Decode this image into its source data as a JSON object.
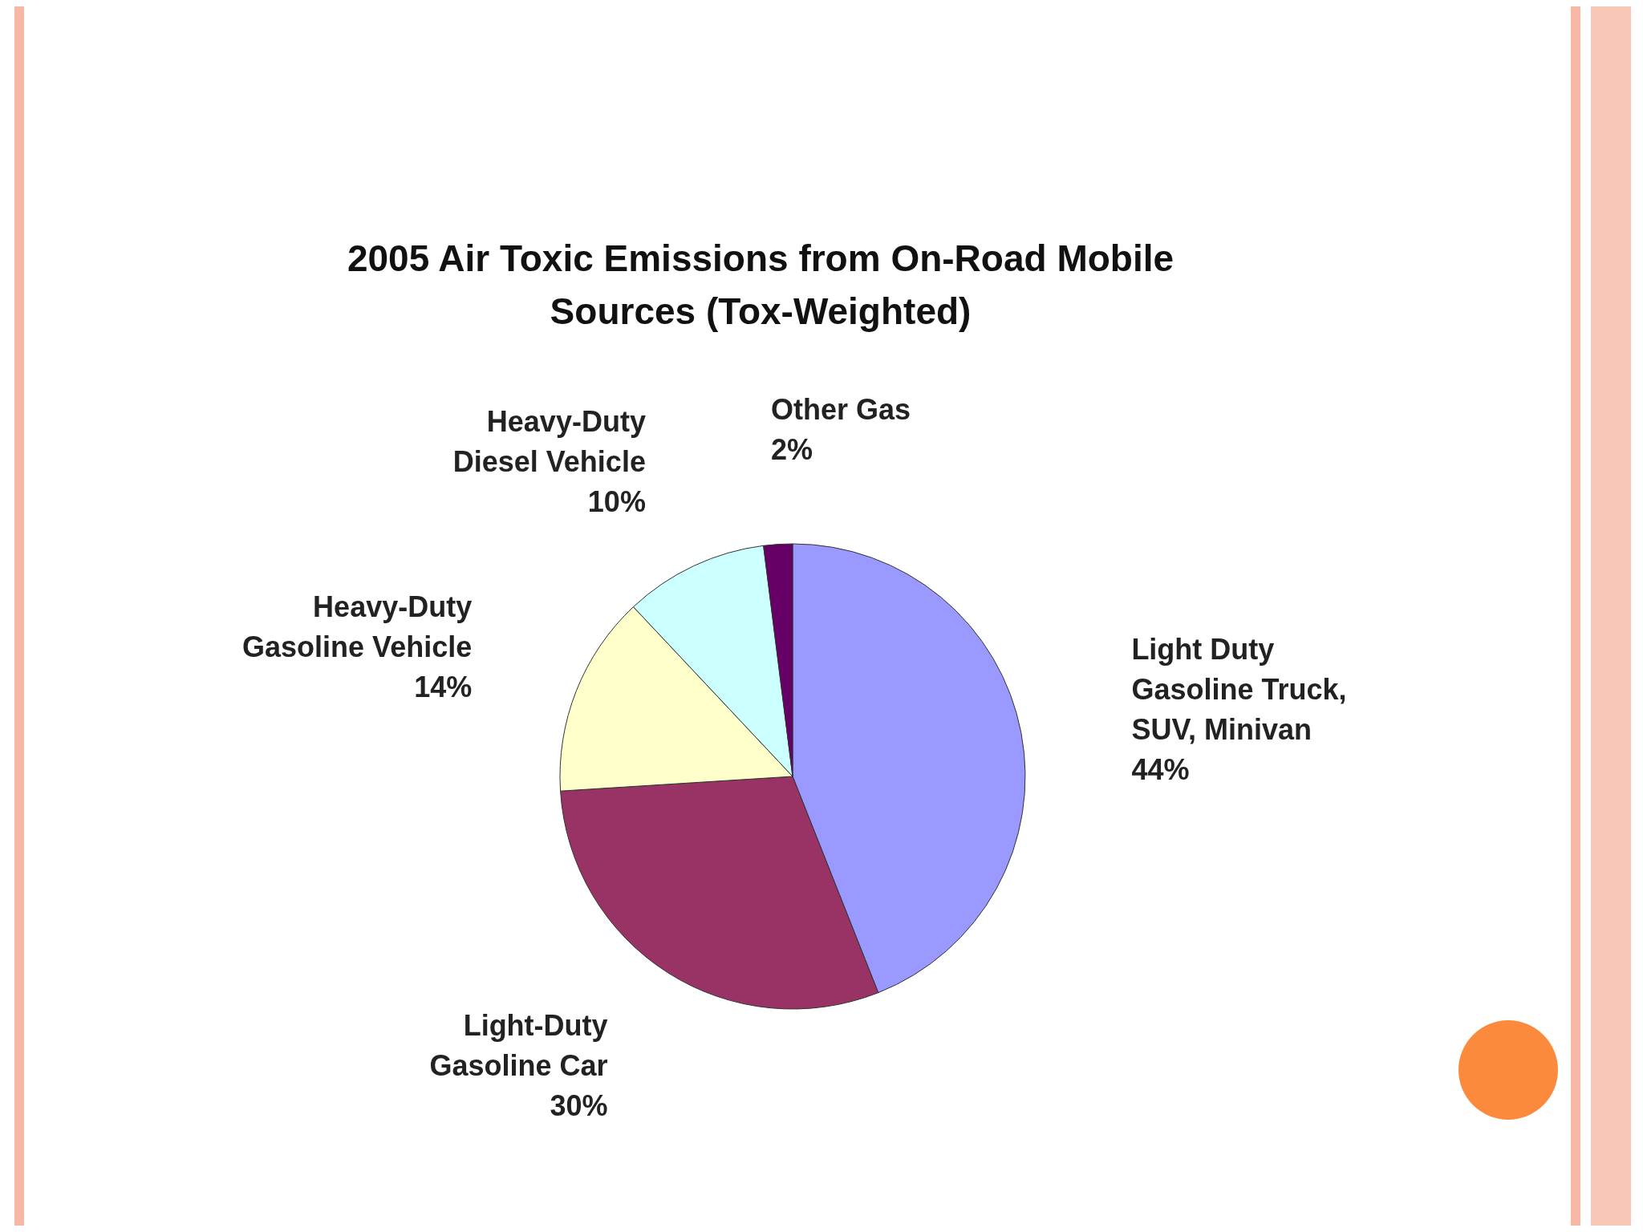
{
  "chart_data": {
    "type": "pie",
    "title": "2005 Air Toxic Emissions from On-Road Mobile Sources (Tox-Weighted)",
    "categories": [
      "Light Duty Gasoline Truck, SUV, Minivan",
      "Light-Duty Gasoline Car",
      "Heavy-Duty Gasoline Vehicle",
      "Heavy-Duty Diesel Vehicle",
      "Other Gas"
    ],
    "values": [
      44,
      30,
      14,
      10,
      2
    ],
    "value_labels": [
      "44%",
      "30%",
      "14%",
      "10%",
      "2%"
    ],
    "colors": [
      "#9999ff",
      "#993366",
      "#ffffcc",
      "#ccffff",
      "#660066"
    ]
  }
}
